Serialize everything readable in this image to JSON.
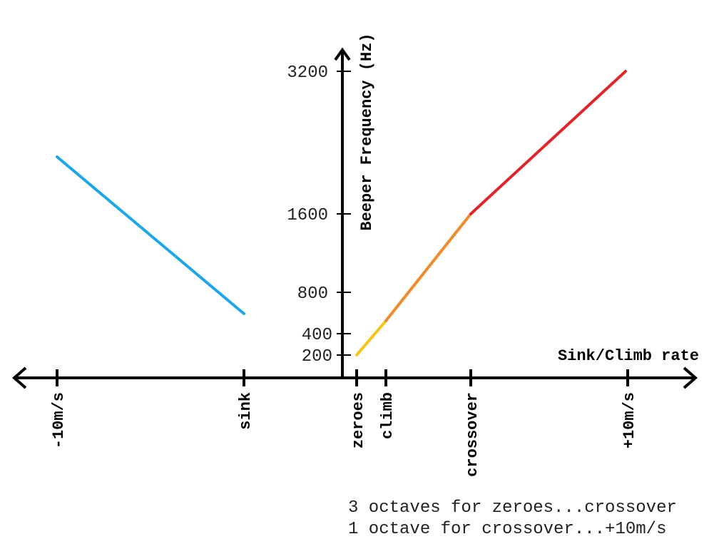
{
  "diagram": {
    "y_axis_label": "Beeper Frequency (Hz)",
    "x_axis_label": "Sink/Climb rate",
    "y_ticks": [
      "3200",
      "1600",
      "800",
      "400",
      "200"
    ],
    "x_ticks": [
      "-10m/s",
      "sink",
      "zeroes",
      "climb",
      "crossover",
      "+10m/s"
    ],
    "notes": [
      "3 octaves for zeroes...crossover",
      "1 octave for crossover...+10m/s"
    ],
    "colors": {
      "axis": "#000000",
      "sink_segment": "#1ea7e8",
      "zeroes_climb": "#f6c51a",
      "climb_crossover": "#f28a2a",
      "crossover_max": "#e0242a"
    }
  }
}
